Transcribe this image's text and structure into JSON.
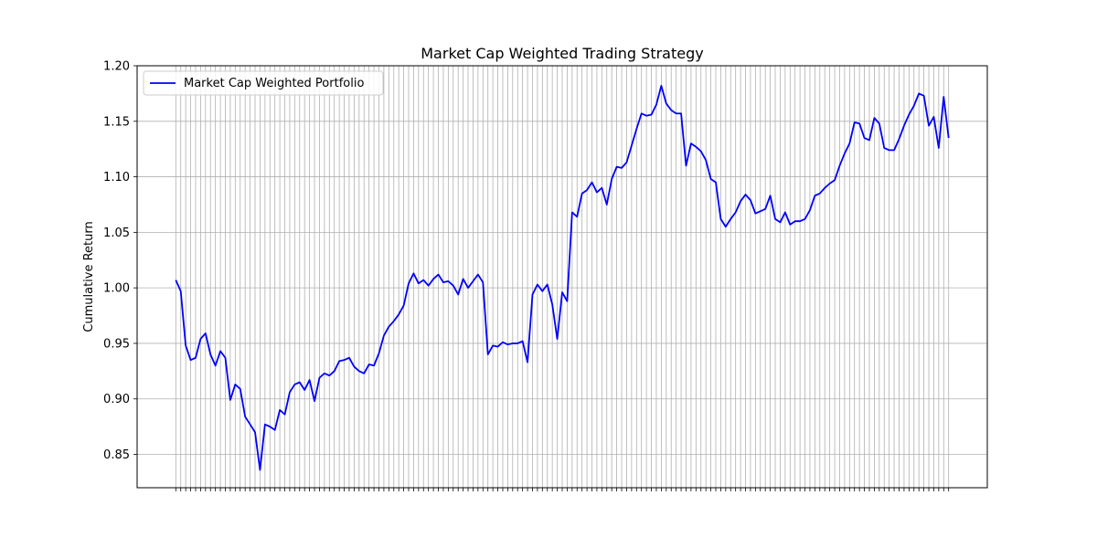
{
  "chart_data": {
    "type": "line",
    "title": "Market Cap Weighted Trading Strategy",
    "xlabel": "",
    "ylabel": "Cumulative Return",
    "ylim": [
      0.82,
      1.2
    ],
    "yticks": [
      "0.85",
      "0.90",
      "0.95",
      "1.00",
      "1.05",
      "1.10",
      "1.15",
      "1.20"
    ],
    "grid": true,
    "legend_position": "top-left",
    "line_color": "#0000ff",
    "series": [
      {
        "name": "Market Cap Weighted Portfolio",
        "values": [
          1.007,
          0.997,
          0.948,
          0.935,
          0.937,
          0.954,
          0.959,
          0.94,
          0.93,
          0.943,
          0.937,
          0.899,
          0.913,
          0.909,
          0.884,
          0.877,
          0.87,
          0.836,
          0.877,
          0.875,
          0.872,
          0.89,
          0.886,
          0.906,
          0.913,
          0.915,
          0.908,
          0.917,
          0.898,
          0.919,
          0.923,
          0.921,
          0.925,
          0.934,
          0.935,
          0.937,
          0.929,
          0.925,
          0.923,
          0.931,
          0.93,
          0.941,
          0.957,
          0.965,
          0.97,
          0.976,
          0.984,
          1.004,
          1.013,
          1.004,
          1.007,
          1.002,
          1.008,
          1.012,
          1.005,
          1.006,
          1.002,
          0.994,
          1.008,
          1.0,
          1.006,
          1.012,
          1.005,
          0.94,
          0.948,
          0.947,
          0.951,
          0.949,
          0.95,
          0.95,
          0.952,
          0.933,
          0.994,
          1.003,
          0.997,
          1.003,
          0.985,
          0.954,
          0.996,
          0.988,
          1.068,
          1.064,
          1.085,
          1.088,
          1.095,
          1.086,
          1.09,
          1.075,
          1.098,
          1.109,
          1.108,
          1.113,
          1.128,
          1.143,
          1.157,
          1.155,
          1.156,
          1.165,
          1.182,
          1.166,
          1.16,
          1.157,
          1.157,
          1.11,
          1.13,
          1.127,
          1.123,
          1.115,
          1.098,
          1.095,
          1.062,
          1.055,
          1.062,
          1.068,
          1.078,
          1.084,
          1.079,
          1.067,
          1.069,
          1.071,
          1.083,
          1.062,
          1.059,
          1.068,
          1.057,
          1.06,
          1.06,
          1.062,
          1.07,
          1.083,
          1.085,
          1.09,
          1.094,
          1.097,
          1.11,
          1.121,
          1.13,
          1.149,
          1.148,
          1.135,
          1.133,
          1.153,
          1.148,
          1.126,
          1.124,
          1.124,
          1.134,
          1.146,
          1.156,
          1.164,
          1.175,
          1.173,
          1.146,
          1.154,
          1.126,
          1.172,
          1.135
        ]
      }
    ]
  }
}
